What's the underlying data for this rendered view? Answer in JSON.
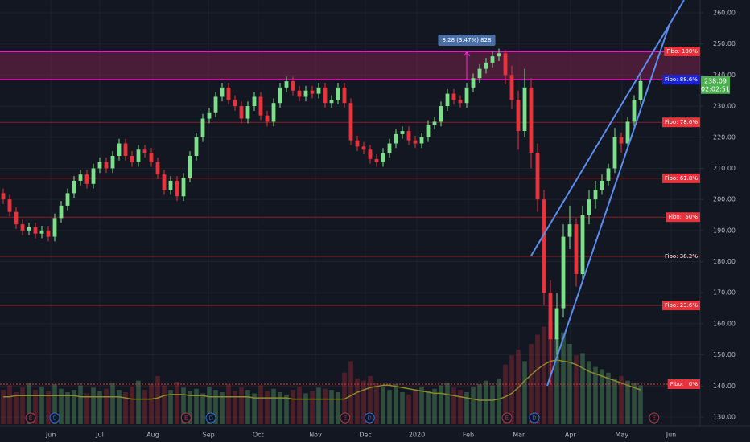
{
  "chart_data": {
    "type": "candlestick",
    "up_color": "#7ce08a",
    "down_color": "#e8323c",
    "xlim": [
      -0.5,
      108.25
    ],
    "ylim": [
      130,
      260
    ],
    "yticks": [
      {
        "value": 130,
        "label": "130.00"
      },
      {
        "value": 140,
        "label": "140.00"
      },
      {
        "value": 150,
        "label": "150.00"
      },
      {
        "value": 160,
        "label": "160.00"
      },
      {
        "value": 170,
        "label": "170.00"
      },
      {
        "value": 180,
        "label": "180.00"
      },
      {
        "value": 190,
        "label": "190.00"
      },
      {
        "value": 200,
        "label": "200.00"
      },
      {
        "value": 210,
        "label": "210.00"
      },
      {
        "value": 220,
        "label": "220.00"
      },
      {
        "value": 230,
        "label": "230.00"
      },
      {
        "value": 240,
        "label": "240.00"
      },
      {
        "value": 250,
        "label": "250.00"
      },
      {
        "value": 260,
        "label": "260.00"
      }
    ],
    "xticks": [
      {
        "value": 7.4,
        "label": "Jun"
      },
      {
        "value": 15,
        "label": "Jul"
      },
      {
        "value": 23.25,
        "label": "Aug"
      },
      {
        "value": 31.9,
        "label": "Sep"
      },
      {
        "value": 39.6,
        "label": "Oct"
      },
      {
        "value": 48.5,
        "label": "Nov"
      },
      {
        "value": 56.25,
        "label": "Dec"
      },
      {
        "value": 64.25,
        "label": "2020"
      },
      {
        "value": 72.25,
        "label": "Feb"
      },
      {
        "value": 80.1,
        "label": "Mar"
      },
      {
        "value": 88.1,
        "label": "Apr"
      },
      {
        "value": 96.1,
        "label": "May"
      },
      {
        "value": 103.75,
        "label": "Jun"
      }
    ],
    "grid": true,
    "ohlc": [
      [
        202,
        203.5,
        198.5,
        200
      ],
      [
        200,
        201.5,
        194.5,
        196
      ],
      [
        196,
        197.5,
        190.5,
        192
      ],
      [
        192,
        193.5,
        188.5,
        190
      ],
      [
        190,
        192.5,
        188.5,
        191
      ],
      [
        191,
        192.5,
        187.5,
        189
      ],
      [
        189,
        191.5,
        187.5,
        190
      ],
      [
        190,
        191.5,
        186.5,
        188
      ],
      [
        188,
        195.5,
        186.5,
        194
      ],
      [
        194,
        199.5,
        192.5,
        198
      ],
      [
        198,
        203.5,
        196.5,
        202
      ],
      [
        202,
        207.5,
        200.5,
        206
      ],
      [
        206,
        209.5,
        204.5,
        208
      ],
      [
        208,
        209.5,
        203.5,
        205
      ],
      [
        205,
        211.5,
        203.5,
        210
      ],
      [
        210,
        213.5,
        208.5,
        212
      ],
      [
        212,
        213.5,
        208.5,
        210
      ],
      [
        210,
        215.5,
        208.5,
        214
      ],
      [
        214,
        219.5,
        212.5,
        218
      ],
      [
        218,
        219.5,
        212.5,
        214
      ],
      [
        214,
        215.5,
        210.5,
        212
      ],
      [
        212,
        217.5,
        210.5,
        216
      ],
      [
        216,
        217.5,
        213.5,
        215
      ],
      [
        215,
        216.5,
        210.5,
        212
      ],
      [
        212,
        213.5,
        206.5,
        208
      ],
      [
        208,
        209.5,
        201.5,
        203
      ],
      [
        203,
        207.5,
        201.5,
        206
      ],
      [
        206,
        207.5,
        199.5,
        201
      ],
      [
        201,
        208.5,
        199.5,
        207
      ],
      [
        207,
        215.5,
        205.5,
        214
      ],
      [
        214,
        221.5,
        212.5,
        220
      ],
      [
        220,
        227.5,
        218.5,
        226
      ],
      [
        226,
        229.5,
        224.5,
        228
      ],
      [
        228,
        234.5,
        226.5,
        233
      ],
      [
        233,
        237.5,
        231.5,
        236
      ],
      [
        236,
        237.5,
        230.5,
        232
      ],
      [
        232,
        233.5,
        228.5,
        230
      ],
      [
        230,
        231.5,
        224.5,
        226
      ],
      [
        226,
        231.5,
        224.5,
        230
      ],
      [
        230,
        234.5,
        228.5,
        233
      ],
      [
        233,
        234.5,
        225.5,
        227
      ],
      [
        227,
        228.5,
        223.5,
        225
      ],
      [
        225,
        232.5,
        223.5,
        231
      ],
      [
        231,
        237.5,
        229.5,
        236
      ],
      [
        236,
        239.5,
        234.5,
        238
      ],
      [
        238,
        239.5,
        233.5,
        235
      ],
      [
        235,
        236.5,
        231.5,
        233
      ],
      [
        233,
        236.5,
        231.5,
        235
      ],
      [
        235,
        236.5,
        232.5,
        234
      ],
      [
        234,
        237.5,
        232.5,
        236
      ],
      [
        236,
        237.5,
        229.5,
        231
      ],
      [
        231,
        233.5,
        229.5,
        232
      ],
      [
        232,
        237.5,
        230.5,
        236
      ],
      [
        236,
        237.5,
        229.5,
        231
      ],
      [
        231,
        232.5,
        217.5,
        219
      ],
      [
        219,
        220.5,
        215.5,
        217
      ],
      [
        217,
        218.5,
        214.5,
        216
      ],
      [
        216,
        217.5,
        211.5,
        213
      ],
      [
        213,
        214.5,
        210.5,
        212
      ],
      [
        212,
        216.5,
        210.5,
        215
      ],
      [
        215,
        219.5,
        213.5,
        218
      ],
      [
        218,
        222.5,
        216.5,
        221
      ],
      [
        221,
        223.5,
        219.5,
        222
      ],
      [
        222,
        223.5,
        217.5,
        219
      ],
      [
        219,
        220.5,
        216.5,
        218
      ],
      [
        218,
        221.5,
        216.5,
        220
      ],
      [
        220,
        225.5,
        218.5,
        224
      ],
      [
        224,
        226.5,
        222.5,
        225
      ],
      [
        225,
        231.5,
        223.5,
        230
      ],
      [
        230,
        235.5,
        228.5,
        234
      ],
      [
        234,
        235.5,
        230.5,
        232
      ],
      [
        232,
        233.5,
        229.5,
        231
      ],
      [
        231,
        237.5,
        229.5,
        236
      ],
      [
        236,
        240.5,
        234.5,
        239
      ],
      [
        239,
        243.5,
        237.5,
        242
      ],
      [
        242,
        245.5,
        240.5,
        244
      ],
      [
        244,
        247.5,
        242.5,
        246
      ],
      [
        246,
        248.5,
        244.5,
        247
      ],
      [
        247,
        248,
        237,
        240
      ],
      [
        240,
        243,
        229,
        232
      ],
      [
        232,
        235,
        216,
        222
      ],
      [
        222,
        242,
        220,
        236
      ],
      [
        236,
        239,
        210,
        215
      ],
      [
        215,
        218,
        196,
        200
      ],
      [
        200,
        203,
        166,
        170
      ],
      [
        170,
        174,
        140.6,
        155
      ],
      [
        155,
        170,
        150,
        165
      ],
      [
        165,
        192,
        162,
        188
      ],
      [
        188,
        198,
        184,
        192
      ],
      [
        192,
        194,
        172,
        176
      ],
      [
        176,
        198,
        174,
        195
      ],
      [
        195,
        203,
        192,
        200
      ],
      [
        200,
        206,
        197,
        203
      ],
      [
        203,
        208,
        201.5,
        206
      ],
      [
        206,
        211.5,
        204.5,
        210
      ],
      [
        210,
        223,
        208.5,
        220
      ],
      [
        220,
        221.5,
        215,
        218
      ],
      [
        218,
        226.5,
        216.5,
        225
      ],
      [
        225,
        233.5,
        223.5,
        232
      ],
      [
        232,
        239.5,
        230.5,
        238.09
      ]
    ],
    "volume_ylim": [
      0,
      140
    ],
    "volume": [
      30,
      34,
      28,
      32,
      36,
      30,
      33,
      29,
      35,
      31,
      28,
      30,
      34,
      27,
      32,
      29,
      31,
      36,
      30,
      28,
      33,
      38,
      30,
      35,
      42,
      34,
      30,
      37,
      32,
      29,
      31,
      27,
      33,
      30,
      28,
      35,
      29,
      32,
      30,
      27,
      34,
      29,
      31,
      28,
      26,
      30,
      33,
      27,
      29,
      32,
      31,
      30,
      28,
      45,
      55,
      40,
      38,
      42,
      36,
      33,
      30,
      35,
      28,
      26,
      30,
      33,
      29,
      31,
      34,
      36,
      32,
      30,
      28,
      33,
      35,
      38,
      34,
      40,
      52,
      60,
      65,
      55,
      70,
      78,
      85,
      90,
      75,
      80,
      70,
      60,
      62,
      55,
      50,
      48,
      45,
      40,
      42,
      38,
      36,
      34
    ],
    "volume_ma": [
      24,
      24,
      25,
      25,
      25,
      25,
      25,
      25,
      25,
      25,
      25,
      25,
      24,
      24,
      24,
      24,
      24,
      24,
      24,
      23,
      22,
      22,
      22,
      22,
      23,
      25,
      26,
      26,
      26,
      25,
      25,
      25,
      24,
      24,
      24,
      24,
      24,
      24,
      24,
      23,
      23,
      23,
      23,
      23,
      23,
      22,
      22,
      22,
      22,
      22,
      22,
      22,
      22,
      22,
      25,
      28,
      30,
      32,
      33,
      34,
      34,
      33,
      32,
      31,
      30,
      29,
      28,
      27,
      27,
      26,
      25,
      24,
      23,
      22,
      21,
      21,
      21,
      22,
      24,
      27,
      32,
      38,
      43,
      48,
      52,
      55,
      56,
      55,
      54,
      52,
      49,
      46,
      44,
      42,
      40,
      38,
      36,
      34,
      32,
      30
    ],
    "volume_ma_color": "#8a8a2a",
    "fibo_levels": [
      {
        "label": "Fibo: 100%",
        "value": 247.6,
        "line_color": "#ff2cdf",
        "label_bg": "#e8323c"
      },
      {
        "label": "Fibo: 88.6%",
        "value": 238.5,
        "line_color": "#ff2cdf",
        "label_bg": "#1a23d8"
      },
      {
        "label": "Fibo: 78.6%",
        "value": 224.8,
        "line_color": "#8e1d22",
        "label_bg": "#e8323c"
      },
      {
        "label": "Fibo: 61.8%",
        "value": 206.8,
        "line_color": "#8e1d22",
        "label_bg": "#e8323c"
      },
      {
        "label": "Fibo:  50%",
        "value": 194.3,
        "line_color": "#8e1d22",
        "label_bg": "#e8323c"
      },
      {
        "label": "Fibo: 38.2%",
        "value": 181.7,
        "line_color": "#8e1d22",
        "label_bg": "none"
      },
      {
        "label": "Fibo: 23.6%",
        "value": 165.9,
        "line_color": "#8e1d22",
        "label_bg": "#e8323c"
      },
      {
        "label": "Fibo:   0%",
        "value": 140.6,
        "line_color": "#e8323c",
        "label_bg": "#e8323c",
        "dotted": true
      }
    ],
    "zone_color": "rgba(200,40,110,0.3)",
    "measure": {
      "label": "8.28 (3.47%) 828",
      "x": 72
    },
    "trendlines": [
      {
        "x": [
          82,
          105.75
        ],
        "y": [
          181.9,
          264.1
        ]
      },
      {
        "x": [
          84.5,
          103.5
        ],
        "y": [
          140.1,
          256.4
        ]
      }
    ],
    "trendline_color": "#5b8def",
    "countdown": "02:02:51",
    "events": [
      {
        "label": "E",
        "x": 4.25,
        "color": "#b23a48"
      },
      {
        "label": "D",
        "x": 8,
        "color": "#2f6fd6"
      },
      {
        "label": "E",
        "x": 28.4,
        "color": "#b23a48"
      },
      {
        "label": "D",
        "x": 32.25,
        "color": "#2f6fd6"
      },
      {
        "label": "E",
        "x": 53.1,
        "color": "#b23a48"
      },
      {
        "label": "D",
        "x": 56.9,
        "color": "#2f6fd6"
      },
      {
        "label": "E",
        "x": 78.25,
        "color": "#b23a48"
      },
      {
        "label": "D",
        "x": 82.5,
        "color": "#2f6fd6"
      },
      {
        "label": "E",
        "x": 101.1,
        "color": "#b23a48"
      }
    ]
  }
}
